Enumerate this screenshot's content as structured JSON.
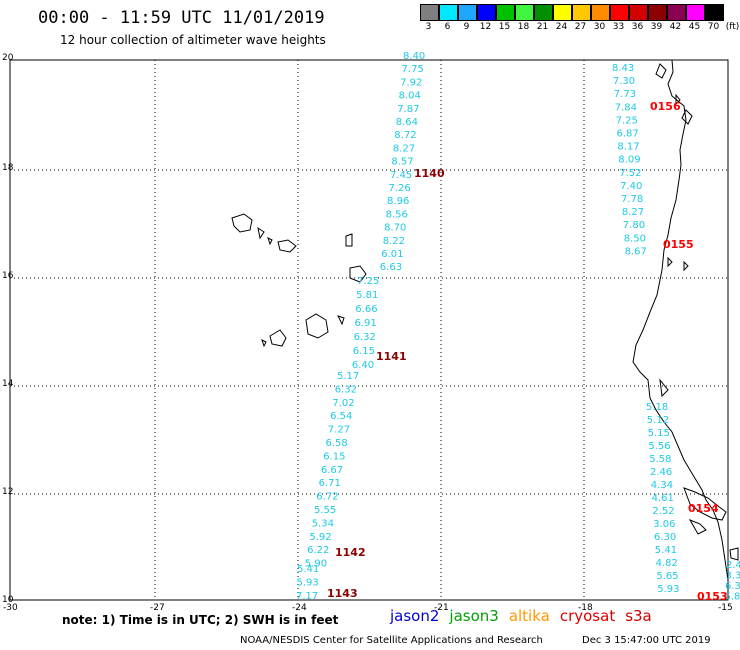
{
  "header": {
    "title": "00:00 - 11:59 UTC 11/01/2019",
    "subtitle": "12 hour collection of altimeter wave heights"
  },
  "color_scale": {
    "labels": [
      "3",
      "6",
      "9",
      "12",
      "15",
      "18",
      "21",
      "24",
      "27",
      "30",
      "33",
      "36",
      "39",
      "42",
      "45",
      "70",
      "(ft)"
    ],
    "colors": [
      "#7f7f7f",
      "#00e8ff",
      "#1fa7ff",
      "#0000ff",
      "#00c000",
      "#3ff53f",
      "#008f00",
      "#ffff00",
      "#ffc800",
      "#ff8c00",
      "#ff0000",
      "#d20000",
      "#8b0000",
      "#8b0050",
      "#ff00ff",
      "#000000"
    ]
  },
  "map": {
    "lat_labels": [
      "20",
      "18",
      "16",
      "14",
      "12",
      "10"
    ],
    "lon_labels": [
      "-30",
      "-27",
      "-24",
      "-21",
      "-18",
      "-15"
    ],
    "track_1140": {
      "time": "1140",
      "values": [
        "8.40",
        "7.75",
        "7.92",
        "8.04",
        "7.87",
        "8.64",
        "8.72",
        "8.27",
        "8.57",
        "7.45",
        "7.26",
        "8.96",
        "8.56",
        "8.70",
        "8.22",
        "6.01",
        "6.63"
      ]
    },
    "track_1141": {
      "time": "1141",
      "values": [
        "7.25",
        "5.81",
        "6.66",
        "6.91",
        "6.32",
        "6.15",
        "6.40"
      ]
    },
    "track_1142": {
      "time": "1142",
      "values": [
        "5.17",
        "6.32",
        "7.02",
        "6.54",
        "7.27",
        "6.58",
        "6.15",
        "6.67",
        "6.71",
        "6.72",
        "5.55",
        "5.34",
        "5.92",
        "6.22",
        "5.90"
      ]
    },
    "track_1143": {
      "time": "1143",
      "values": [
        "5.41",
        "5.93",
        "7.17"
      ]
    },
    "track_0156": {
      "time": "0156",
      "values": [
        "8.43",
        "7.30",
        "7.73",
        "7.84",
        "7.25",
        "6.87",
        "8.17",
        "8.09",
        "7.52",
        "7.40",
        "7.78",
        "8.27",
        "7.80",
        "8.50",
        "8.67"
      ]
    },
    "track_0155": {
      "time": "0155"
    },
    "track_0154": {
      "time": "0154",
      "values": [
        "5.18",
        "5.12",
        "5.15",
        "5.56",
        "5.58",
        "2.46",
        "4.34",
        "4.61",
        "2.52",
        "3.06",
        "6.30",
        "5.41",
        "4.82",
        "5.65",
        "5.93"
      ]
    },
    "track_0153": {
      "time": "0153",
      "values": [
        "2.4",
        "3.34",
        "6.38",
        "5.8"
      ]
    }
  },
  "footer": {
    "note": "note: 1) Time is in UTC; 2) SWH is in feet",
    "satellites": [
      {
        "name": "jason2",
        "color": "#0000d0"
      },
      {
        "name": "jason3",
        "color": "#00a000"
      },
      {
        "name": "altika",
        "color": "#ff9a00"
      },
      {
        "name": "cryosat",
        "color": "#e00000"
      },
      {
        "name": "s3a",
        "color": "#d00000"
      }
    ],
    "credit": "NOAA/NESDIS Center for Satellite Applications and Research",
    "timestamp": "Dec  3 15:47:00 UTC 2019"
  }
}
